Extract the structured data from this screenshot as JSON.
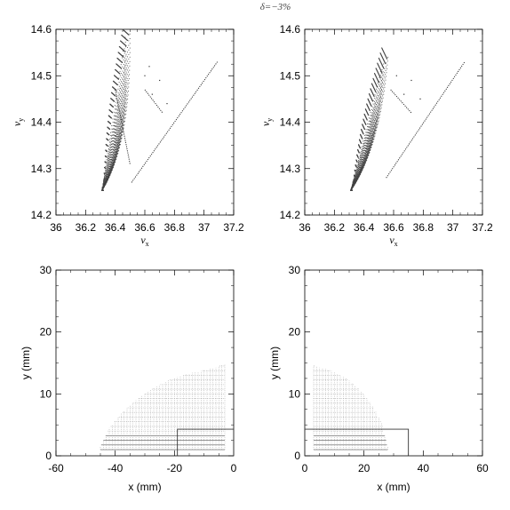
{
  "figure": {
    "title": "δ=−3%"
  },
  "chart_data": [
    {
      "id": "tune-left",
      "type": "scatter",
      "xlabel": "ν",
      "xlabel_sub": "x",
      "ylabel": "ν",
      "ylabel_sub": "y",
      "xlim": [
        36,
        37.2
      ],
      "ylim": [
        14.2,
        14.6
      ],
      "xticks": [
        36,
        36.2,
        36.4,
        36.6,
        36.8,
        37,
        37.2
      ],
      "xtick_labels": [
        "36",
        "36.2",
        "36.4",
        "36.6",
        "36.8",
        "37",
        "37.2"
      ],
      "yticks": [
        14.2,
        14.3,
        14.4,
        14.5,
        14.6
      ],
      "ytick_labels": [
        "14.2",
        "14.3",
        "14.4",
        "14.5",
        "14.6"
      ],
      "grid": false,
      "footprint": {
        "apex": [
          36.31,
          14.253
        ],
        "upper_left": [
          36.45,
          14.6
        ],
        "upper_right": [
          36.52,
          14.58
        ]
      },
      "lines": [
        {
          "from": [
            36.51,
            14.27
          ],
          "to": [
            37.09,
            14.53
          ]
        },
        {
          "from": [
            36.4,
            14.47
          ],
          "to": [
            36.5,
            14.31
          ]
        },
        {
          "from": [
            36.6,
            14.47
          ],
          "to": [
            36.72,
            14.42
          ]
        }
      ],
      "scatter": [
        [
          36.6,
          14.5
        ],
        [
          36.65,
          14.46
        ],
        [
          36.7,
          14.49
        ],
        [
          36.75,
          14.44
        ],
        [
          36.63,
          14.52
        ]
      ]
    },
    {
      "id": "tune-right",
      "type": "scatter",
      "xlabel": "ν",
      "xlabel_sub": "x",
      "ylabel": "ν",
      "ylabel_sub": "y",
      "xlim": [
        36,
        37.2
      ],
      "ylim": [
        14.2,
        14.6
      ],
      "xticks": [
        36,
        36.2,
        36.4,
        36.6,
        36.8,
        37,
        37.2
      ],
      "xtick_labels": [
        "36",
        "36.2",
        "36.4",
        "36.6",
        "36.8",
        "37",
        "37.2"
      ],
      "yticks": [
        14.2,
        14.3,
        14.4,
        14.5,
        14.6
      ],
      "ytick_labels": [
        "14.2",
        "14.3",
        "14.4",
        "14.5",
        "14.6"
      ],
      "grid": false,
      "footprint": {
        "apex": [
          36.31,
          14.253
        ],
        "upper_left": [
          36.52,
          14.56
        ],
        "upper_right": [
          36.58,
          14.52
        ]
      },
      "lines": [
        {
          "from": [
            36.55,
            14.28
          ],
          "to": [
            37.08,
            14.53
          ]
        },
        {
          "from": [
            36.58,
            14.47
          ],
          "to": [
            36.72,
            14.42
          ]
        }
      ],
      "scatter": [
        [
          36.62,
          14.5
        ],
        [
          36.67,
          14.46
        ],
        [
          36.72,
          14.49
        ],
        [
          36.78,
          14.45
        ]
      ]
    },
    {
      "id": "aperture-left",
      "type": "scatter",
      "xlabel": "x (mm)",
      "ylabel": "y (mm)",
      "xlim": [
        -60,
        0
      ],
      "ylim": [
        0,
        30
      ],
      "xticks": [
        -60,
        -40,
        -20,
        0
      ],
      "xtick_labels": [
        "-60",
        "-40",
        "-20",
        "0"
      ],
      "yticks": [
        0,
        10,
        20,
        30
      ],
      "ytick_labels": [
        "0",
        "10",
        "20",
        "30"
      ],
      "grid": false,
      "envelope_x": [
        -45,
        -42,
        -38,
        -34,
        -30,
        -26,
        -22,
        -18,
        -14,
        -10,
        -6,
        -3
      ],
      "envelope_y": [
        1.6,
        4.5,
        6.8,
        8.6,
        10.0,
        11.2,
        12.2,
        12.9,
        13.4,
        13.8,
        14.3,
        14.8
      ],
      "box": {
        "x1": -19,
        "x2": 0,
        "y1": 0,
        "y2": 4.3
      }
    },
    {
      "id": "aperture-right",
      "type": "scatter",
      "xlabel": "x (mm)",
      "ylabel": "y (mm)",
      "xlim": [
        0,
        60
      ],
      "ylim": [
        0,
        30
      ],
      "xticks": [
        0,
        20,
        40,
        60
      ],
      "xtick_labels": [
        "0",
        "20",
        "40",
        "60"
      ],
      "yticks": [
        0,
        10,
        20,
        30
      ],
      "ytick_labels": [
        "0",
        "10",
        "20",
        "30"
      ],
      "grid": false,
      "envelope_x": [
        3,
        5,
        8,
        11,
        14,
        17,
        20,
        23,
        26,
        28
      ],
      "envelope_y": [
        14.6,
        14.3,
        13.9,
        13.3,
        12.5,
        11.4,
        9.9,
        8.0,
        5.3,
        1.6
      ],
      "box": {
        "x1": 0,
        "x2": 35,
        "y1": 0,
        "y2": 4.3
      }
    }
  ]
}
